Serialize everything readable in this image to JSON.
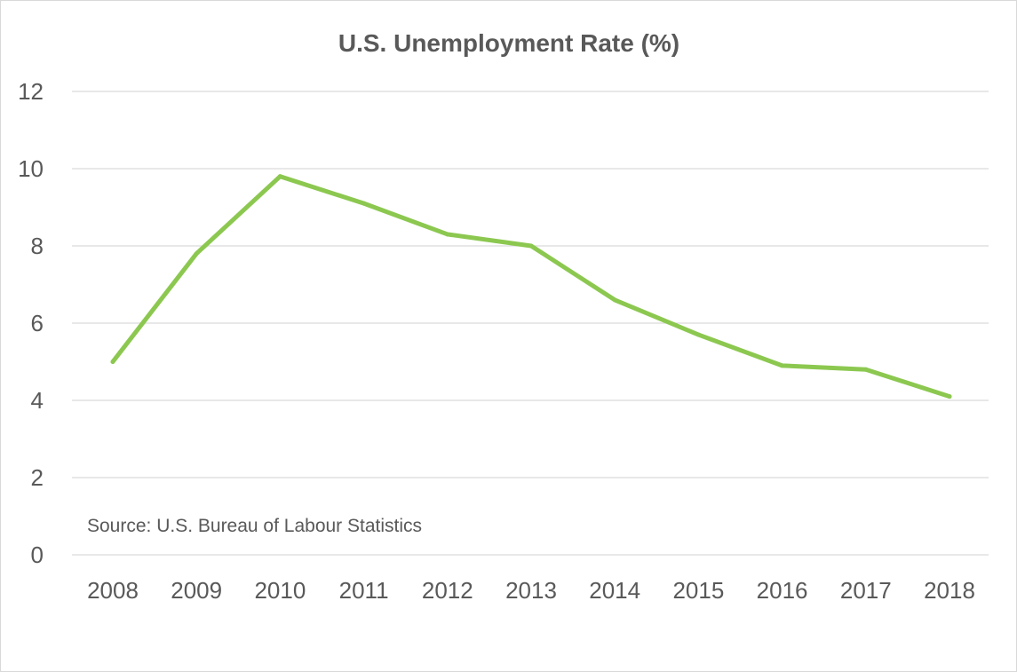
{
  "chart_data": {
    "type": "line",
    "title": "U.S. Unemployment Rate (%)",
    "xlabel": "",
    "ylabel": "",
    "categories": [
      "2008",
      "2009",
      "2010",
      "2011",
      "2012",
      "2013",
      "2014",
      "2015",
      "2016",
      "2017",
      "2018"
    ],
    "series": [
      {
        "values": [
          5.0,
          7.8,
          9.8,
          9.1,
          8.3,
          8.0,
          6.6,
          5.7,
          4.9,
          4.8,
          4.1
        ],
        "color": "#8cc850"
      }
    ],
    "ylim": [
      0,
      12
    ],
    "yticks": [
      "0",
      "2",
      "4",
      "6",
      "8",
      "10",
      "12"
    ],
    "grid": true,
    "legend": "none",
    "annotations": [
      "Source: U.S. Bureau of Labour Statistics"
    ]
  }
}
